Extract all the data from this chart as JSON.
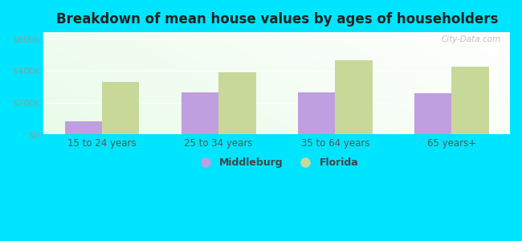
{
  "title": "Breakdown of mean house values by ages of householders",
  "categories": [
    "15 to 24 years",
    "25 to 34 years",
    "35 to 64 years",
    "65 years+"
  ],
  "middleburg_values": [
    80000,
    265000,
    265000,
    260000
  ],
  "florida_values": [
    330000,
    390000,
    465000,
    425000
  ],
  "middleburg_color": "#bf9fdf",
  "florida_color": "#c8d898",
  "background_color": "#00e5ff",
  "yticks": [
    0,
    200000,
    400000,
    600000
  ],
  "ylim": [
    0,
    640000
  ],
  "bar_width": 0.32,
  "legend_middleburg": "Middleburg",
  "legend_florida": "Florida",
  "watermark": "City-Data.com",
  "grid_color": "#ffffff",
  "ytick_color": "#999999",
  "xtick_color": "#555555",
  "title_color": "#222222",
  "title_fontsize": 12
}
